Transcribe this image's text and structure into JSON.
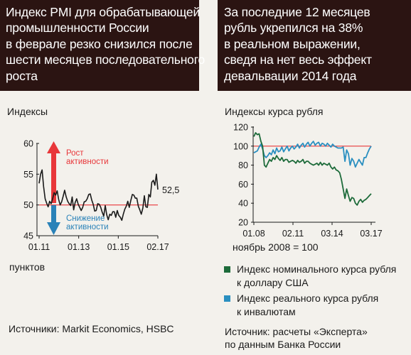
{
  "left_header": {
    "lines": [
      "Индекс PMI для обрабатывающей",
      "промышленности России",
      "в феврале резко снизился после",
      "шести месяцев последовательного",
      "роста"
    ]
  },
  "right_header": {
    "lines": [
      "За последние 12 месяцев",
      "рубль укрепился на 38%",
      "в реальном выражении,",
      "сведя на нет весь эффект",
      "девальвации 2014 года"
    ]
  },
  "left_chart_labels": {
    "top_label": "Индексы",
    "bottom_label": "пунктов",
    "last_value_label": "52,5",
    "growth_label_1": "Рост",
    "growth_label_2": "активности",
    "decline_label_1": "Снижение",
    "decline_label_2": "активности"
  },
  "right_chart_labels": {
    "top_label": "Индексы курса рубля",
    "base_note": "ноябрь 2008 = 100"
  },
  "legend": {
    "items": [
      {
        "line1": "Индекс номинального курса рубля",
        "line2": "к доллару США",
        "color": "#1d6b3a"
      },
      {
        "line1": "Индекс реального курса рубля",
        "line2": "к инвалютам",
        "color": "#2a8fc0"
      }
    ]
  },
  "sources": {
    "left": "Источники: Markit Economics, HSBC",
    "right_line1": "Источник: расчеты «Эксперта»",
    "right_line2": "по данным Банка России"
  },
  "colors": {
    "header_bg": "#2b1412",
    "growth_arrow": "#e8373a",
    "decline_arrow": "#2a82b8",
    "reference_line": "#e8373a",
    "pmi_line": "#1a1a1a",
    "nominal_line": "#1d6b3a",
    "real_line": "#2a8fc0"
  },
  "chart_data": [
    {
      "type": "line",
      "title": "",
      "xlabel": "",
      "ylabel": "Индексы пунктов",
      "x_tick_labels": [
        "01.11",
        "01.13",
        "01.15",
        "02.17"
      ],
      "y_tick_labels": [
        "45",
        "50",
        "55",
        "60"
      ],
      "ylim": [
        45,
        60
      ],
      "reference_value": 50,
      "grid": false,
      "series": [
        {
          "values": [
            53.5,
            55.0,
            55.7,
            53.0,
            51.0,
            50.3,
            49.7,
            50.6,
            50.2,
            51.0,
            52.0,
            51.6,
            52.3,
            50.9,
            50.0,
            50.5,
            51.4,
            52.4,
            51.3,
            50.6,
            50.2,
            49.9,
            51.3,
            49.2,
            50.4,
            51.0,
            50.1,
            49.6,
            49.1,
            49.6,
            50.5,
            50.6,
            51.0,
            51.7,
            51.8,
            50.8,
            50.1,
            49.0,
            49.1,
            50.2,
            50.1,
            49.6,
            48.8,
            48.2,
            49.9,
            48.4,
            47.6,
            48.5,
            48.3,
            48.9,
            48.9,
            48.0,
            49.1,
            48.3,
            48.0,
            47.5,
            48.5,
            49.3,
            49.8,
            50.6,
            49.6,
            50.7,
            51.7,
            51.6,
            51.1,
            51.1,
            49.8,
            49.2,
            48.5,
            49.5,
            51.5,
            49.7,
            49.6,
            51.7,
            51.3,
            53.7,
            54.0,
            53.2,
            55.0,
            52.5
          ]
        }
      ]
    },
    {
      "type": "line",
      "title": "",
      "xlabel": "ноябрь 2008 = 100",
      "ylabel": "Индексы курса рубля",
      "x_tick_labels": [
        "01.08",
        "02.11",
        "03.14",
        "03.17"
      ],
      "y_tick_labels": [
        "20",
        "40",
        "60",
        "80",
        "100",
        "120"
      ],
      "ylim": [
        20,
        120
      ],
      "reference_value": 100,
      "grid": false,
      "series": [
        {
          "name": "Индекс номинального курса рубля к доллару США",
          "values": [
            110.0,
            114.0,
            112.0,
            113.0,
            105.0,
            100.0,
            80.0,
            78.0,
            82.0,
            86.0,
            84.0,
            88.0,
            86.0,
            90.0,
            87.0,
            85.0,
            88.0,
            84.0,
            86.0,
            86.0,
            83.0,
            84.0,
            85.0,
            84.0,
            82.0,
            85.0,
            83.0,
            84.0,
            86.0,
            82.0,
            84.0,
            84.0,
            82.0,
            81.0,
            80.0,
            81.0,
            82.0,
            80.0,
            83.0,
            80.0,
            82.0,
            81.0,
            80.0,
            82.0,
            78.0,
            76.0,
            78.0,
            75.0,
            74.0,
            72.0,
            65.0,
            55.0,
            45.0,
            55.0,
            48.0,
            42.0,
            46.0,
            45.0,
            40.0,
            38.0,
            42.0,
            44.0,
            41.0,
            43.0,
            44.0,
            46.0,
            48.0,
            50.0
          ]
        },
        {
          "name": "Индекс реального курса рубля к инвалютам",
          "values": [
            93.0,
            94.0,
            95.0,
            99.0,
            102.0,
            97.0,
            90.0,
            88.0,
            90.0,
            93.0,
            91.0,
            96.0,
            92.0,
            98.0,
            94.0,
            95.0,
            99.0,
            94.0,
            97.0,
            100.0,
            95.0,
            98.0,
            100.0,
            97.0,
            99.0,
            102.0,
            98.0,
            101.0,
            103.0,
            99.0,
            102.0,
            104.0,
            100.0,
            103.0,
            105.0,
            101.0,
            103.0,
            104.0,
            100.0,
            103.0,
            102.0,
            100.0,
            103.0,
            101.0,
            99.0,
            102.0,
            100.0,
            99.0,
            98.0,
            98.0,
            98.0,
            99.0,
            84.0,
            96.0,
            92.0,
            80.0,
            87.0,
            84.0,
            78.0,
            82.0,
            86.0,
            83.0,
            80.0,
            88.0,
            88.0,
            93.0,
            97.0,
            100.0
          ]
        }
      ]
    }
  ]
}
